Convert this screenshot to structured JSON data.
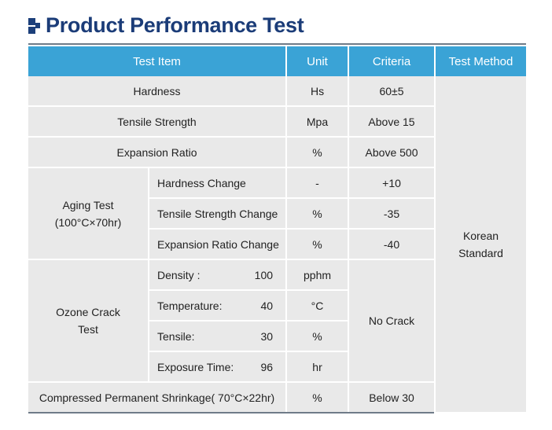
{
  "title": "Product Performance Test",
  "headers": {
    "test_item": "Test Item",
    "unit": "Unit",
    "criteria": "Criteria",
    "test_method": "Test Method"
  },
  "rows": {
    "hardness": {
      "item": "Hardness",
      "unit": "Hs",
      "criteria": "60±5"
    },
    "tensile_strength": {
      "item": "Tensile Strength",
      "unit": "Mpa",
      "criteria": "Above 15"
    },
    "expansion_ratio": {
      "item": "Expansion Ratio",
      "unit": "%",
      "criteria": "Above 500"
    }
  },
  "aging": {
    "group_line1": "Aging Test",
    "group_line2": "(100°C×70hr)",
    "items": [
      {
        "item": "Hardness Change",
        "unit": "-",
        "criteria": "+10"
      },
      {
        "item": "Tensile Strength Change",
        "unit": "%",
        "criteria": "-35"
      },
      {
        "item": "Expansion Ratio Change",
        "unit": "%",
        "criteria": "-40"
      }
    ]
  },
  "ozone": {
    "group_line1": "Ozone Crack",
    "group_line2": "Test",
    "criteria": "No Crack",
    "items": [
      {
        "label": "Density :",
        "value": "100",
        "unit": "pphm"
      },
      {
        "label": "Temperature:",
        "value": "40",
        "unit": "°C"
      },
      {
        "label": "Tensile:",
        "value": "30",
        "unit": "%"
      },
      {
        "label": "Exposure Time:",
        "value": "96",
        "unit": "hr"
      }
    ]
  },
  "compressed": {
    "item": "Compressed Permanent Shrinkage( 70°C×22hr)",
    "unit": "%",
    "criteria": "Below 30"
  },
  "test_method": {
    "line1": "Korean",
    "line2": "Standard"
  },
  "colors": {
    "header_bg": "#3aa3d6",
    "cell_bg": "#e9e9e9",
    "title": "#1b3c78"
  }
}
